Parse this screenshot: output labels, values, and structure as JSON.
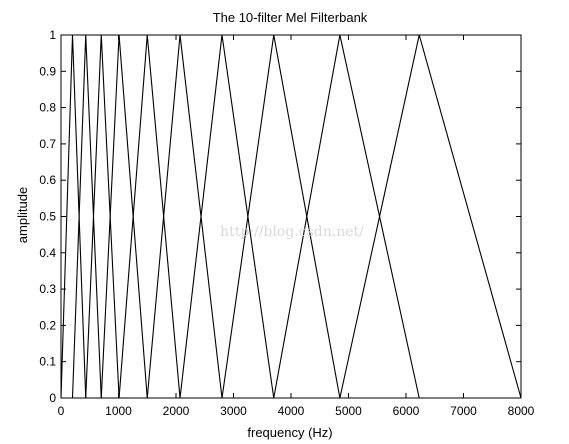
{
  "chart_data": {
    "type": "line",
    "title": "The 10-filter Mel Filterbank",
    "xlabel": "frequency (Hz)",
    "ylabel": "amplitude",
    "xlim": [
      0,
      8000
    ],
    "ylim": [
      0,
      1
    ],
    "xticks": [
      0,
      1000,
      2000,
      3000,
      4000,
      5000,
      6000,
      7000,
      8000
    ],
    "yticks": [
      0,
      0.1,
      0.2,
      0.3,
      0.4,
      0.5,
      0.6,
      0.7,
      0.8,
      0.9,
      1
    ],
    "grid": false,
    "line_color": "#000000",
    "filter_edges_hz": [
      0,
      200,
      430,
      700,
      1010,
      1500,
      2070,
      2800,
      3700,
      4850,
      6230,
      8000
    ],
    "series": [
      {
        "x": [
          0,
          200,
          430
        ],
        "y": [
          0,
          1,
          0
        ]
      },
      {
        "x": [
          200,
          430,
          700
        ],
        "y": [
          0,
          1,
          0
        ]
      },
      {
        "x": [
          430,
          700,
          1010
        ],
        "y": [
          0,
          1,
          0
        ]
      },
      {
        "x": [
          700,
          1010,
          1500
        ],
        "y": [
          0,
          1,
          0
        ]
      },
      {
        "x": [
          1010,
          1500,
          2070
        ],
        "y": [
          0,
          1,
          0
        ]
      },
      {
        "x": [
          1500,
          2070,
          2800
        ],
        "y": [
          0,
          1,
          0
        ]
      },
      {
        "x": [
          2070,
          2800,
          3700
        ],
        "y": [
          0,
          1,
          0
        ]
      },
      {
        "x": [
          2800,
          3700,
          4850
        ],
        "y": [
          0,
          1,
          0
        ]
      },
      {
        "x": [
          3700,
          4850,
          6230
        ],
        "y": [
          0,
          1,
          0
        ]
      },
      {
        "x": [
          4850,
          6230,
          8000
        ],
        "y": [
          0,
          1,
          0
        ]
      }
    ]
  },
  "watermark": "http://blog.csdn.net/"
}
